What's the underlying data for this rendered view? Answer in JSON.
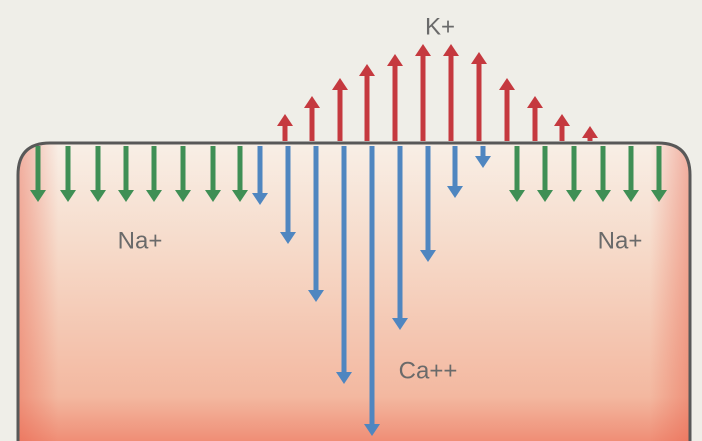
{
  "labels": {
    "potassium": "K+",
    "sodium_left": "Na+",
    "sodium_right": "Na+",
    "calcium": "Ca++"
  }
}
